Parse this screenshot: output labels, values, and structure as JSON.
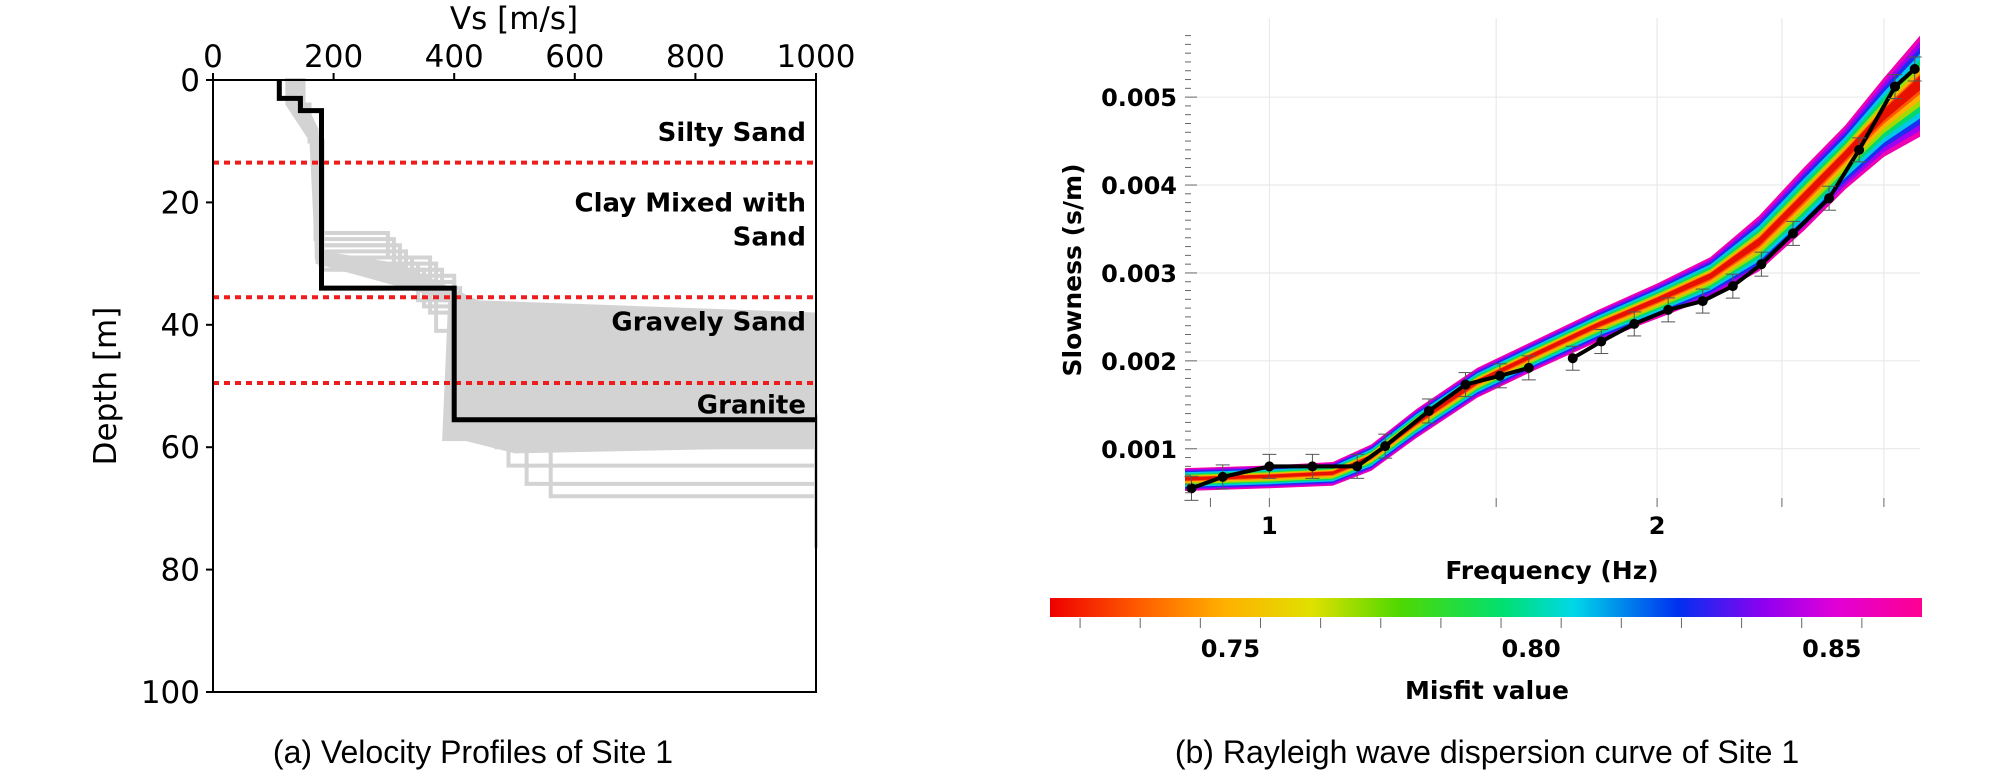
{
  "chart_data": [
    {
      "type": "line",
      "caption": "(a) Velocity Profiles of Site 1",
      "xlabel": "Vs [m/s]",
      "ylabel": "Depth [m]",
      "xlim": [
        0,
        1000
      ],
      "ylim": [
        0,
        100
      ],
      "y_inverted": true,
      "x_axis_position": "top",
      "xticks": [
        "0",
        "200",
        "400",
        "600",
        "800",
        "1000"
      ],
      "yticks": [
        "0",
        "20",
        "40",
        "60",
        "80",
        "100"
      ],
      "grid": false,
      "best_profile": {
        "color": "#000000",
        "vs": [
          110,
          110,
          145,
          145,
          180,
          180,
          400,
          400,
          1000
        ],
        "depth": [
          0,
          3,
          3,
          5,
          5,
          34,
          34,
          55.5,
          55.5
        ]
      },
      "ensemble_color": "#d3d3d3",
      "ensemble_profiles": [
        {
          "vs": [
            120,
            150,
            160,
            170,
            300,
            330,
            400,
            1000
          ],
          "depth": [
            0,
            4,
            10,
            26,
            30,
            33,
            55,
            58
          ]
        },
        {
          "vs": [
            120,
            150,
            160,
            180,
            310,
            380,
            430,
            1000
          ],
          "depth": [
            0,
            4,
            10,
            27,
            31,
            36,
            57,
            62
          ]
        },
        {
          "vs": [
            120,
            150,
            160,
            175,
            320,
            400,
            470,
            1000
          ],
          "depth": [
            0,
            4,
            10,
            28,
            32,
            38,
            60,
            66
          ]
        },
        {
          "vs": [
            120,
            150,
            160,
            172,
            330,
            410,
            490,
            1000
          ],
          "depth": [
            0,
            4,
            10,
            29,
            34,
            40,
            63,
            70
          ]
        },
        {
          "vs": [
            120,
            150,
            160,
            178,
            340,
            420,
            520,
            1000
          ],
          "depth": [
            0,
            4,
            10,
            30,
            36,
            42,
            66,
            74
          ]
        },
        {
          "vs": [
            120,
            150,
            160,
            182,
            350,
            430,
            560,
            1000
          ],
          "depth": [
            0,
            4,
            10,
            31,
            37,
            44,
            68,
            76.5
          ]
        },
        {
          "vs": [
            120,
            150,
            160,
            170,
            290,
            360,
            420,
            1000
          ],
          "depth": [
            0,
            4,
            10,
            25,
            29,
            38,
            56,
            64
          ]
        },
        {
          "vs": [
            120,
            150,
            160,
            176,
            300,
            370,
            440,
            1000
          ],
          "depth": [
            0,
            4,
            10,
            27,
            30,
            41,
            58,
            68
          ]
        }
      ],
      "boundaries": {
        "color": "#ee1c1c",
        "depths": [
          13.5,
          35.5,
          49.5
        ]
      },
      "layers": [
        {
          "label": "Silty Sand",
          "lines": [
            "Silty Sand"
          ],
          "depth": 8.5
        },
        {
          "label": "Clay Mixed with Sand",
          "lines": [
            "Clay Mixed with",
            "Sand"
          ],
          "depth": 20
        },
        {
          "label": "Gravely Sand",
          "lines": [
            "Gravely Sand"
          ],
          "depth": 39.5
        },
        {
          "label": "Granite",
          "lines": [
            "Granite"
          ],
          "depth": 53
        }
      ]
    },
    {
      "type": "line",
      "caption": "(b) Rayleigh wave dispersion curve of Site 1",
      "xlabel": "Frequency (Hz)",
      "ylabel": "Slowness (s/m)",
      "x_scale": "log",
      "xlim": [
        0.86,
        3.2
      ],
      "ylim": [
        0.00044,
        0.0059
      ],
      "xticks": [
        "1",
        "2"
      ],
      "yticks": [
        "0.001",
        "0.002",
        "0.003",
        "0.004",
        "0.005"
      ],
      "grid": true,
      "observed": {
        "color": "#000000",
        "x": [
          0.87,
          0.92,
          1.0,
          1.08,
          1.17,
          1.23,
          1.33,
          1.42,
          1.51,
          1.59
        ],
        "y": [
          0.00055,
          0.00068,
          0.0008,
          0.0008,
          0.0008,
          0.00103,
          0.00143,
          0.00173,
          0.00183,
          0.00192
        ]
      },
      "observed_2": {
        "x": [
          1.72,
          1.81,
          1.92,
          2.04,
          2.17,
          2.29,
          2.41,
          2.55,
          2.72,
          2.87,
          3.06
        ],
        "y": [
          0.00203,
          0.00222,
          0.00242,
          0.00258,
          0.00268,
          0.00285,
          0.0031,
          0.00345,
          0.00385,
          0.0044,
          0.00512
        ]
      },
      "observed_3": {
        "x": [
          3.06,
          3.17
        ],
        "y": [
          0.00512,
          0.00532
        ]
      },
      "model_band": {
        "x": [
          0.86,
          1.0,
          1.12,
          1.2,
          1.3,
          1.45,
          1.6,
          1.8,
          2.0,
          2.2,
          2.4,
          2.6,
          2.8,
          3.0,
          3.2
        ],
        "upper": [
          0.00078,
          0.00081,
          0.00085,
          0.00105,
          0.00145,
          0.00192,
          0.00222,
          0.00258,
          0.00288,
          0.00318,
          0.00365,
          0.0042,
          0.00468,
          0.00522,
          0.0057
        ],
        "lower": [
          0.00052,
          0.00055,
          0.00058,
          0.00075,
          0.00112,
          0.00158,
          0.00188,
          0.00222,
          0.00248,
          0.00272,
          0.00302,
          0.00348,
          0.00395,
          0.00432,
          0.00455
        ]
      },
      "colorbar": {
        "label": "Misfit value",
        "range": [
          0.72,
          0.865
        ],
        "ticks": [
          "0.75",
          "0.80",
          "0.85"
        ],
        "colors": [
          "#ee0000",
          "#ff7a00",
          "#f0e000",
          "#50d800",
          "#00e070",
          "#00d8e8",
          "#0030f0",
          "#a000f0",
          "#f000c8",
          "#ff0090"
        ]
      }
    }
  ]
}
